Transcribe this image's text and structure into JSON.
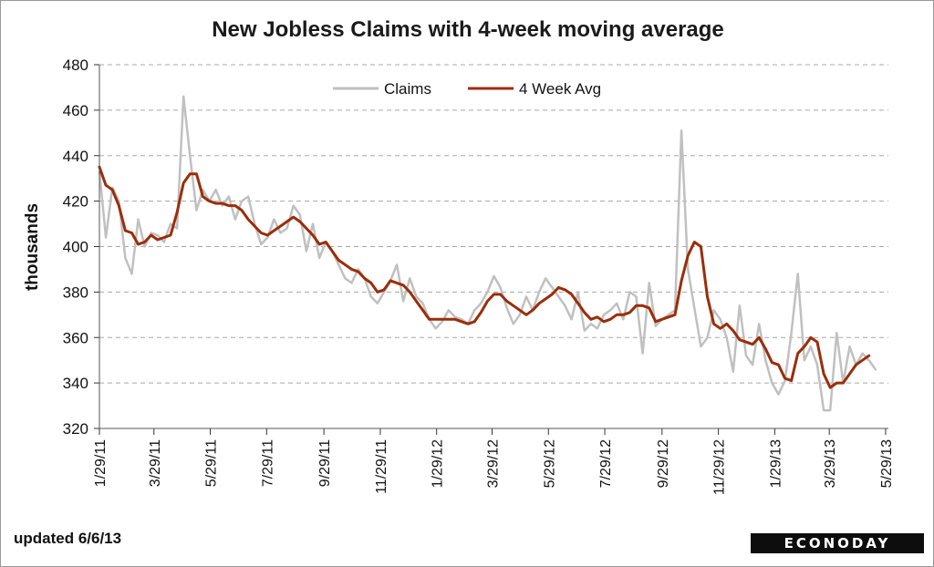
{
  "chart_data": {
    "type": "line",
    "title": "New Jobless Claims with 4-week moving average",
    "ylabel": "thousands",
    "xlabel": "",
    "ylim": [
      320,
      480
    ],
    "yticks": [
      320,
      340,
      360,
      380,
      400,
      420,
      440,
      460,
      480
    ],
    "xlim": [
      "1/29/11",
      "6/1/13"
    ],
    "xticks": [
      "1/29/11",
      "3/29/11",
      "5/29/11",
      "7/29/11",
      "9/29/11",
      "11/29/11",
      "1/29/12",
      "3/29/12",
      "5/29/12",
      "7/29/12",
      "9/29/12",
      "11/29/12",
      "1/29/13",
      "3/29/13",
      "5/29/13"
    ],
    "grid": "horizontal dashed",
    "legend_position": "top-center",
    "series": [
      {
        "name": "Claims",
        "color": "#c0c0c0",
        "points": [
          [
            "1/29/11",
            433
          ],
          [
            "2/5/11",
            404
          ],
          [
            "2/12/11",
            426
          ],
          [
            "2/19/11",
            420
          ],
          [
            "2/26/11",
            395
          ],
          [
            "3/5/11",
            388
          ],
          [
            "3/12/11",
            412
          ],
          [
            "3/19/11",
            400
          ],
          [
            "3/26/11",
            406
          ],
          [
            "4/2/11",
            405
          ],
          [
            "4/9/11",
            402
          ],
          [
            "4/16/11",
            410
          ],
          [
            "4/23/11",
            408
          ],
          [
            "4/30/11",
            466
          ],
          [
            "5/7/11",
            440
          ],
          [
            "5/14/11",
            416
          ],
          [
            "5/21/11",
            425
          ],
          [
            "5/28/11",
            420
          ],
          [
            "6/4/11",
            425
          ],
          [
            "6/11/11",
            418
          ],
          [
            "6/18/11",
            422
          ],
          [
            "6/25/11",
            412
          ],
          [
            "7/2/11",
            420
          ],
          [
            "7/9/11",
            422
          ],
          [
            "7/16/11",
            410
          ],
          [
            "7/23/11",
            401
          ],
          [
            "7/30/11",
            404
          ],
          [
            "8/6/11",
            412
          ],
          [
            "8/13/11",
            406
          ],
          [
            "8/20/11",
            408
          ],
          [
            "8/27/11",
            418
          ],
          [
            "9/3/11",
            414
          ],
          [
            "9/10/11",
            398
          ],
          [
            "9/17/11",
            410
          ],
          [
            "9/24/11",
            395
          ],
          [
            "10/1/11",
            402
          ],
          [
            "10/8/11",
            398
          ],
          [
            "10/15/11",
            392
          ],
          [
            "10/22/11",
            386
          ],
          [
            "10/29/11",
            384
          ],
          [
            "11/5/11",
            390
          ],
          [
            "11/12/11",
            386
          ],
          [
            "11/19/11",
            378
          ],
          [
            "11/26/11",
            375
          ],
          [
            "12/3/11",
            380
          ],
          [
            "12/10/11",
            385
          ],
          [
            "12/17/11",
            392
          ],
          [
            "12/24/11",
            376
          ],
          [
            "12/31/11",
            386
          ],
          [
            "1/7/12",
            378
          ],
          [
            "1/14/12",
            375
          ],
          [
            "1/21/12",
            368
          ],
          [
            "1/28/12",
            364
          ],
          [
            "2/4/12",
            367
          ],
          [
            "2/11/12",
            372
          ],
          [
            "2/18/12",
            369
          ],
          [
            "2/25/12",
            368
          ],
          [
            "3/3/12",
            366
          ],
          [
            "3/10/12",
            372
          ],
          [
            "3/17/12",
            375
          ],
          [
            "3/24/12",
            380
          ],
          [
            "3/31/12",
            387
          ],
          [
            "4/7/12",
            382
          ],
          [
            "4/14/12",
            373
          ],
          [
            "4/21/12",
            366
          ],
          [
            "4/28/12",
            370
          ],
          [
            "5/5/12",
            378
          ],
          [
            "5/12/12",
            372
          ],
          [
            "5/19/12",
            380
          ],
          [
            "5/26/12",
            386
          ],
          [
            "6/2/12",
            382
          ],
          [
            "6/9/12",
            378
          ],
          [
            "6/16/12",
            374
          ],
          [
            "6/23/12",
            368
          ],
          [
            "6/30/12",
            380
          ],
          [
            "7/7/12",
            363
          ],
          [
            "7/14/12",
            366
          ],
          [
            "7/21/12",
            364
          ],
          [
            "7/28/12",
            370
          ],
          [
            "8/4/12",
            372
          ],
          [
            "8/11/12",
            375
          ],
          [
            "8/18/12",
            368
          ],
          [
            "8/25/12",
            380
          ],
          [
            "9/1/12",
            378
          ],
          [
            "9/8/12",
            353
          ],
          [
            "9/15/12",
            384
          ],
          [
            "9/22/12",
            365
          ],
          [
            "9/29/12",
            368
          ],
          [
            "10/6/12",
            370
          ],
          [
            "10/13/12",
            372
          ],
          [
            "10/20/12",
            451
          ],
          [
            "10/27/12",
            390
          ],
          [
            "11/3/12",
            373
          ],
          [
            "11/10/12",
            356
          ],
          [
            "11/17/12",
            360
          ],
          [
            "11/24/12",
            372
          ],
          [
            "12/1/12",
            368
          ],
          [
            "12/8/12",
            360
          ],
          [
            "12/15/12",
            345
          ],
          [
            "12/22/12",
            374
          ],
          [
            "12/29/12",
            352
          ],
          [
            "1/5/13",
            348
          ],
          [
            "1/12/13",
            366
          ],
          [
            "1/19/13",
            350
          ],
          [
            "1/26/13",
            340
          ],
          [
            "2/2/13",
            335
          ],
          [
            "2/9/13",
            341
          ],
          [
            "2/16/13",
            362
          ],
          [
            "2/23/13",
            388
          ],
          [
            "3/2/13",
            350
          ],
          [
            "3/9/13",
            356
          ],
          [
            "3/16/13",
            348
          ],
          [
            "3/23/13",
            328
          ],
          [
            "3/30/13",
            328
          ],
          [
            "4/6/13",
            362
          ],
          [
            "4/13/13",
            340
          ],
          [
            "4/20/13",
            356
          ],
          [
            "4/27/13",
            348
          ],
          [
            "5/4/13",
            353
          ],
          [
            "5/11/13",
            350
          ],
          [
            "5/18/13",
            346
          ]
        ]
      },
      {
        "name": "4 Week Avg",
        "color": "#9b2d0a",
        "points": [
          [
            "1/29/11",
            435
          ],
          [
            "2/5/11",
            427
          ],
          [
            "2/12/11",
            425
          ],
          [
            "2/19/11",
            418
          ],
          [
            "2/26/11",
            407
          ],
          [
            "3/5/11",
            406
          ],
          [
            "3/12/11",
            401
          ],
          [
            "3/19/11",
            402
          ],
          [
            "3/26/11",
            405
          ],
          [
            "4/2/11",
            403
          ],
          [
            "4/9/11",
            404
          ],
          [
            "4/16/11",
            405
          ],
          [
            "4/23/11",
            415
          ],
          [
            "4/30/11",
            428
          ],
          [
            "5/7/11",
            432
          ],
          [
            "5/14/11",
            432
          ],
          [
            "5/21/11",
            422
          ],
          [
            "5/28/11",
            420
          ],
          [
            "6/4/11",
            419
          ],
          [
            "6/11/11",
            419
          ],
          [
            "6/18/11",
            418
          ],
          [
            "6/25/11",
            418
          ],
          [
            "7/2/11",
            416
          ],
          [
            "7/9/11",
            412
          ],
          [
            "7/16/11",
            409
          ],
          [
            "7/23/11",
            406
          ],
          [
            "7/30/11",
            405
          ],
          [
            "8/6/11",
            407
          ],
          [
            "8/13/11",
            409
          ],
          [
            "8/20/11",
            411
          ],
          [
            "8/27/11",
            413
          ],
          [
            "9/3/11",
            411
          ],
          [
            "9/10/11",
            408
          ],
          [
            "9/17/11",
            405
          ],
          [
            "9/24/11",
            401
          ],
          [
            "10/1/11",
            402
          ],
          [
            "10/8/11",
            398
          ],
          [
            "10/15/11",
            394
          ],
          [
            "10/22/11",
            392
          ],
          [
            "10/29/11",
            390
          ],
          [
            "11/5/11",
            389
          ],
          [
            "11/12/11",
            386
          ],
          [
            "11/19/11",
            384
          ],
          [
            "11/26/11",
            380
          ],
          [
            "12/3/11",
            381
          ],
          [
            "12/10/11",
            385
          ],
          [
            "12/17/11",
            384
          ],
          [
            "12/24/11",
            383
          ],
          [
            "12/31/11",
            380
          ],
          [
            "1/7/12",
            376
          ],
          [
            "1/14/12",
            372
          ],
          [
            "1/21/12",
            368
          ],
          [
            "1/28/12",
            368
          ],
          [
            "2/4/12",
            368
          ],
          [
            "2/11/12",
            368
          ],
          [
            "2/18/12",
            368
          ],
          [
            "2/25/12",
            367
          ],
          [
            "3/3/12",
            366
          ],
          [
            "3/10/12",
            367
          ],
          [
            "3/17/12",
            371
          ],
          [
            "3/24/12",
            376
          ],
          [
            "3/31/12",
            379
          ],
          [
            "4/7/12",
            379
          ],
          [
            "4/14/12",
            376
          ],
          [
            "4/21/12",
            374
          ],
          [
            "4/28/12",
            372
          ],
          [
            "5/5/12",
            370
          ],
          [
            "5/12/12",
            372
          ],
          [
            "5/19/12",
            375
          ],
          [
            "5/26/12",
            377
          ],
          [
            "6/2/12",
            379
          ],
          [
            "6/9/12",
            382
          ],
          [
            "6/16/12",
            381
          ],
          [
            "6/23/12",
            379
          ],
          [
            "6/30/12",
            375
          ],
          [
            "7/7/12",
            371
          ],
          [
            "7/14/12",
            368
          ],
          [
            "7/21/12",
            369
          ],
          [
            "7/28/12",
            367
          ],
          [
            "8/4/12",
            368
          ],
          [
            "8/11/12",
            370
          ],
          [
            "8/18/12",
            370
          ],
          [
            "8/25/12",
            371
          ],
          [
            "9/1/12",
            374
          ],
          [
            "9/8/12",
            374
          ],
          [
            "9/15/12",
            373
          ],
          [
            "9/22/12",
            367
          ],
          [
            "9/29/12",
            368
          ],
          [
            "10/6/12",
            369
          ],
          [
            "10/13/12",
            370
          ],
          [
            "10/20/12",
            385
          ],
          [
            "10/27/12",
            396
          ],
          [
            "11/3/12",
            402
          ],
          [
            "11/10/12",
            400
          ],
          [
            "11/17/12",
            378
          ],
          [
            "11/24/12",
            366
          ],
          [
            "12/1/12",
            364
          ],
          [
            "12/8/12",
            366
          ],
          [
            "12/15/12",
            363
          ],
          [
            "12/22/12",
            359
          ],
          [
            "12/29/12",
            358
          ],
          [
            "1/5/13",
            357
          ],
          [
            "1/12/13",
            360
          ],
          [
            "1/19/13",
            355
          ],
          [
            "1/26/13",
            349
          ],
          [
            "2/2/13",
            348
          ],
          [
            "2/9/13",
            342
          ],
          [
            "2/16/13",
            341
          ],
          [
            "2/23/13",
            353
          ],
          [
            "3/2/13",
            356
          ],
          [
            "3/9/13",
            360
          ],
          [
            "3/16/13",
            358
          ],
          [
            "3/23/13",
            344
          ],
          [
            "3/30/13",
            338
          ],
          [
            "4/6/13",
            340
          ],
          [
            "4/13/13",
            340
          ],
          [
            "4/20/13",
            344
          ],
          [
            "4/27/13",
            348
          ],
          [
            "5/4/13",
            350
          ],
          [
            "5/11/13",
            352
          ]
        ]
      }
    ]
  },
  "footer": {
    "updated": "updated 6/6/13"
  },
  "brand": {
    "name": "ECONODAY"
  }
}
